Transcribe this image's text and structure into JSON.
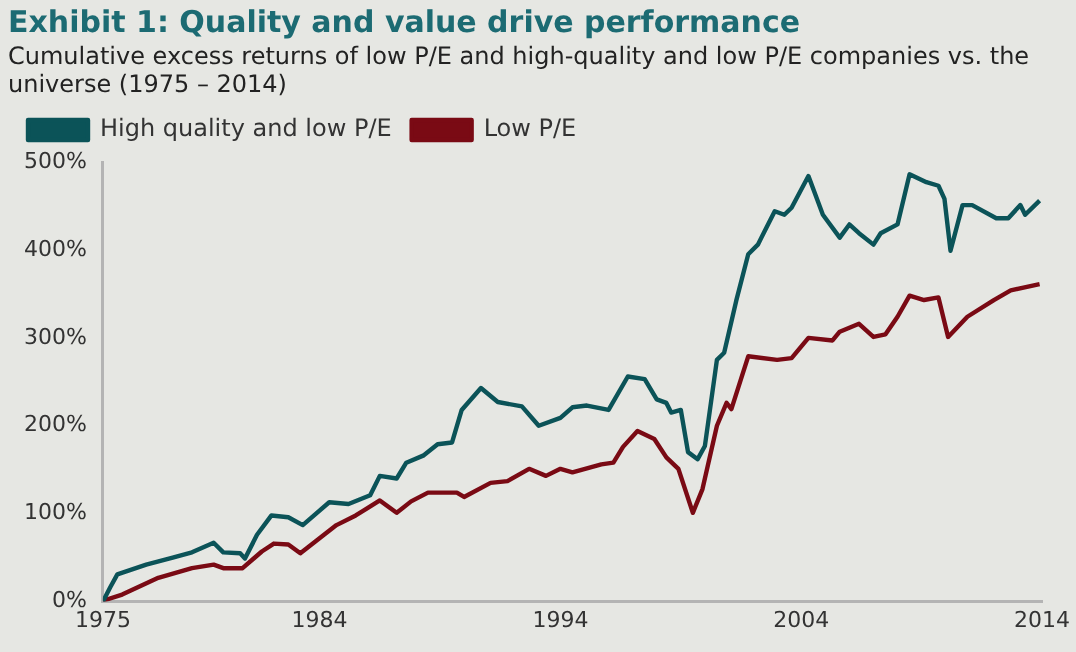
{
  "chart_data": {
    "type": "line",
    "title": "Exhibit 1: Quality and value drive performance",
    "subtitle": "Cumulative excess returns of low P/E and high-quality and low P/E companies vs. the universe (1975 – 2014)",
    "xlim": [
      1975,
      2014
    ],
    "xticks": [
      1975,
      1984,
      1994,
      2004,
      2014
    ],
    "ylim": [
      0,
      500
    ],
    "yticks": [
      {
        "value": 0,
        "label": "0%"
      },
      {
        "value": 100,
        "label": "100%"
      },
      {
        "value": 200,
        "label": "200%"
      },
      {
        "value": 300,
        "label": "300%"
      },
      {
        "value": 400,
        "label": "400%"
      },
      {
        "value": 500,
        "label": "500%"
      }
    ],
    "grid": false,
    "legend": "top left",
    "marker": "none",
    "line_style": "solid",
    "series": [
      {
        "name": "High quality and low P/E",
        "color": "#0b5358",
        "x": [
          1975,
          1975.3,
          1975.6,
          1976.8,
          1977.9,
          1978.7,
          1979.6,
          1980,
          1980.7,
          1980.9,
          1981.4,
          1982,
          1982.7,
          1983.3,
          1984.4,
          1985.2,
          1986.1,
          1986.5,
          1987.2,
          1987.6,
          1988.3,
          1988.9,
          1989.5,
          1989.9,
          1990.7,
          1991.4,
          1992.4,
          1993.1,
          1994,
          1994.5,
          1995.1,
          1996,
          1996.8,
          1997.5,
          1998,
          1998.4,
          1998.6,
          1999,
          1999.3,
          1999.7,
          2000,
          2000.5,
          2000.8,
          2001.3,
          2001.8,
          2002.2,
          2002.9,
          2003.3,
          2003.6,
          2004.3,
          2004.9,
          2005.6,
          2006,
          2006.4,
          2007,
          2007.3,
          2008,
          2008.5,
          2009.2,
          2009.7,
          2009.95,
          2010.2,
          2010.7,
          2011.1,
          2012.1,
          2012.6,
          2013.1,
          2013.3,
          2013.9
        ],
        "values": [
          0,
          16,
          31,
          42,
          50,
          56,
          67,
          56,
          55,
          49,
          76,
          98,
          96,
          87,
          113,
          111,
          121,
          143,
          140,
          158,
          166,
          179,
          181,
          218,
          243,
          227,
          222,
          200,
          209,
          221,
          223,
          218,
          256,
          253,
          230,
          226,
          215,
          218,
          170,
          162,
          177,
          275,
          283,
          342,
          395,
          406,
          444,
          440,
          448,
          484,
          440,
          414,
          429,
          419,
          406,
          419,
          429,
          486,
          477,
          473,
          458,
          399,
          451,
          451,
          436,
          436,
          451,
          440,
          456
        ]
      },
      {
        "name": "Low P/E",
        "color": "#7a0a14",
        "x": [
          1975,
          1975.8,
          1977.3,
          1978.7,
          1979.6,
          1980,
          1980.8,
          1981.6,
          1982.1,
          1982.7,
          1983.2,
          1984.7,
          1985.5,
          1986.5,
          1987.2,
          1987.8,
          1988.5,
          1989.7,
          1990,
          1991.1,
          1991.8,
          1992.7,
          1993.4,
          1994,
          1994.5,
          1995.7,
          1996.2,
          1996.6,
          1997.2,
          1997.9,
          1998.4,
          1998.9,
          1999.5,
          1999.9,
          2000.5,
          2000.9,
          2001.1,
          2001.8,
          2003,
          2003.6,
          2004.3,
          2005.3,
          2005.6,
          2006.4,
          2007,
          2007.5,
          2008,
          2008.5,
          2009.1,
          2009.7,
          2010.1,
          2010.9,
          2012,
          2012.7,
          2013.9
        ],
        "values": [
          1,
          8,
          27,
          38,
          42,
          38,
          38,
          57,
          66,
          65,
          55,
          87,
          98,
          115,
          101,
          114,
          124,
          124,
          119,
          135,
          137,
          151,
          143,
          151,
          147,
          156,
          158,
          176,
          194,
          185,
          164,
          151,
          101,
          128,
          200,
          226,
          219,
          279,
          275,
          277,
          300,
          297,
          307,
          316,
          301,
          304,
          324,
          348,
          343,
          346,
          301,
          324,
          343,
          354,
          361
        ]
      }
    ]
  }
}
